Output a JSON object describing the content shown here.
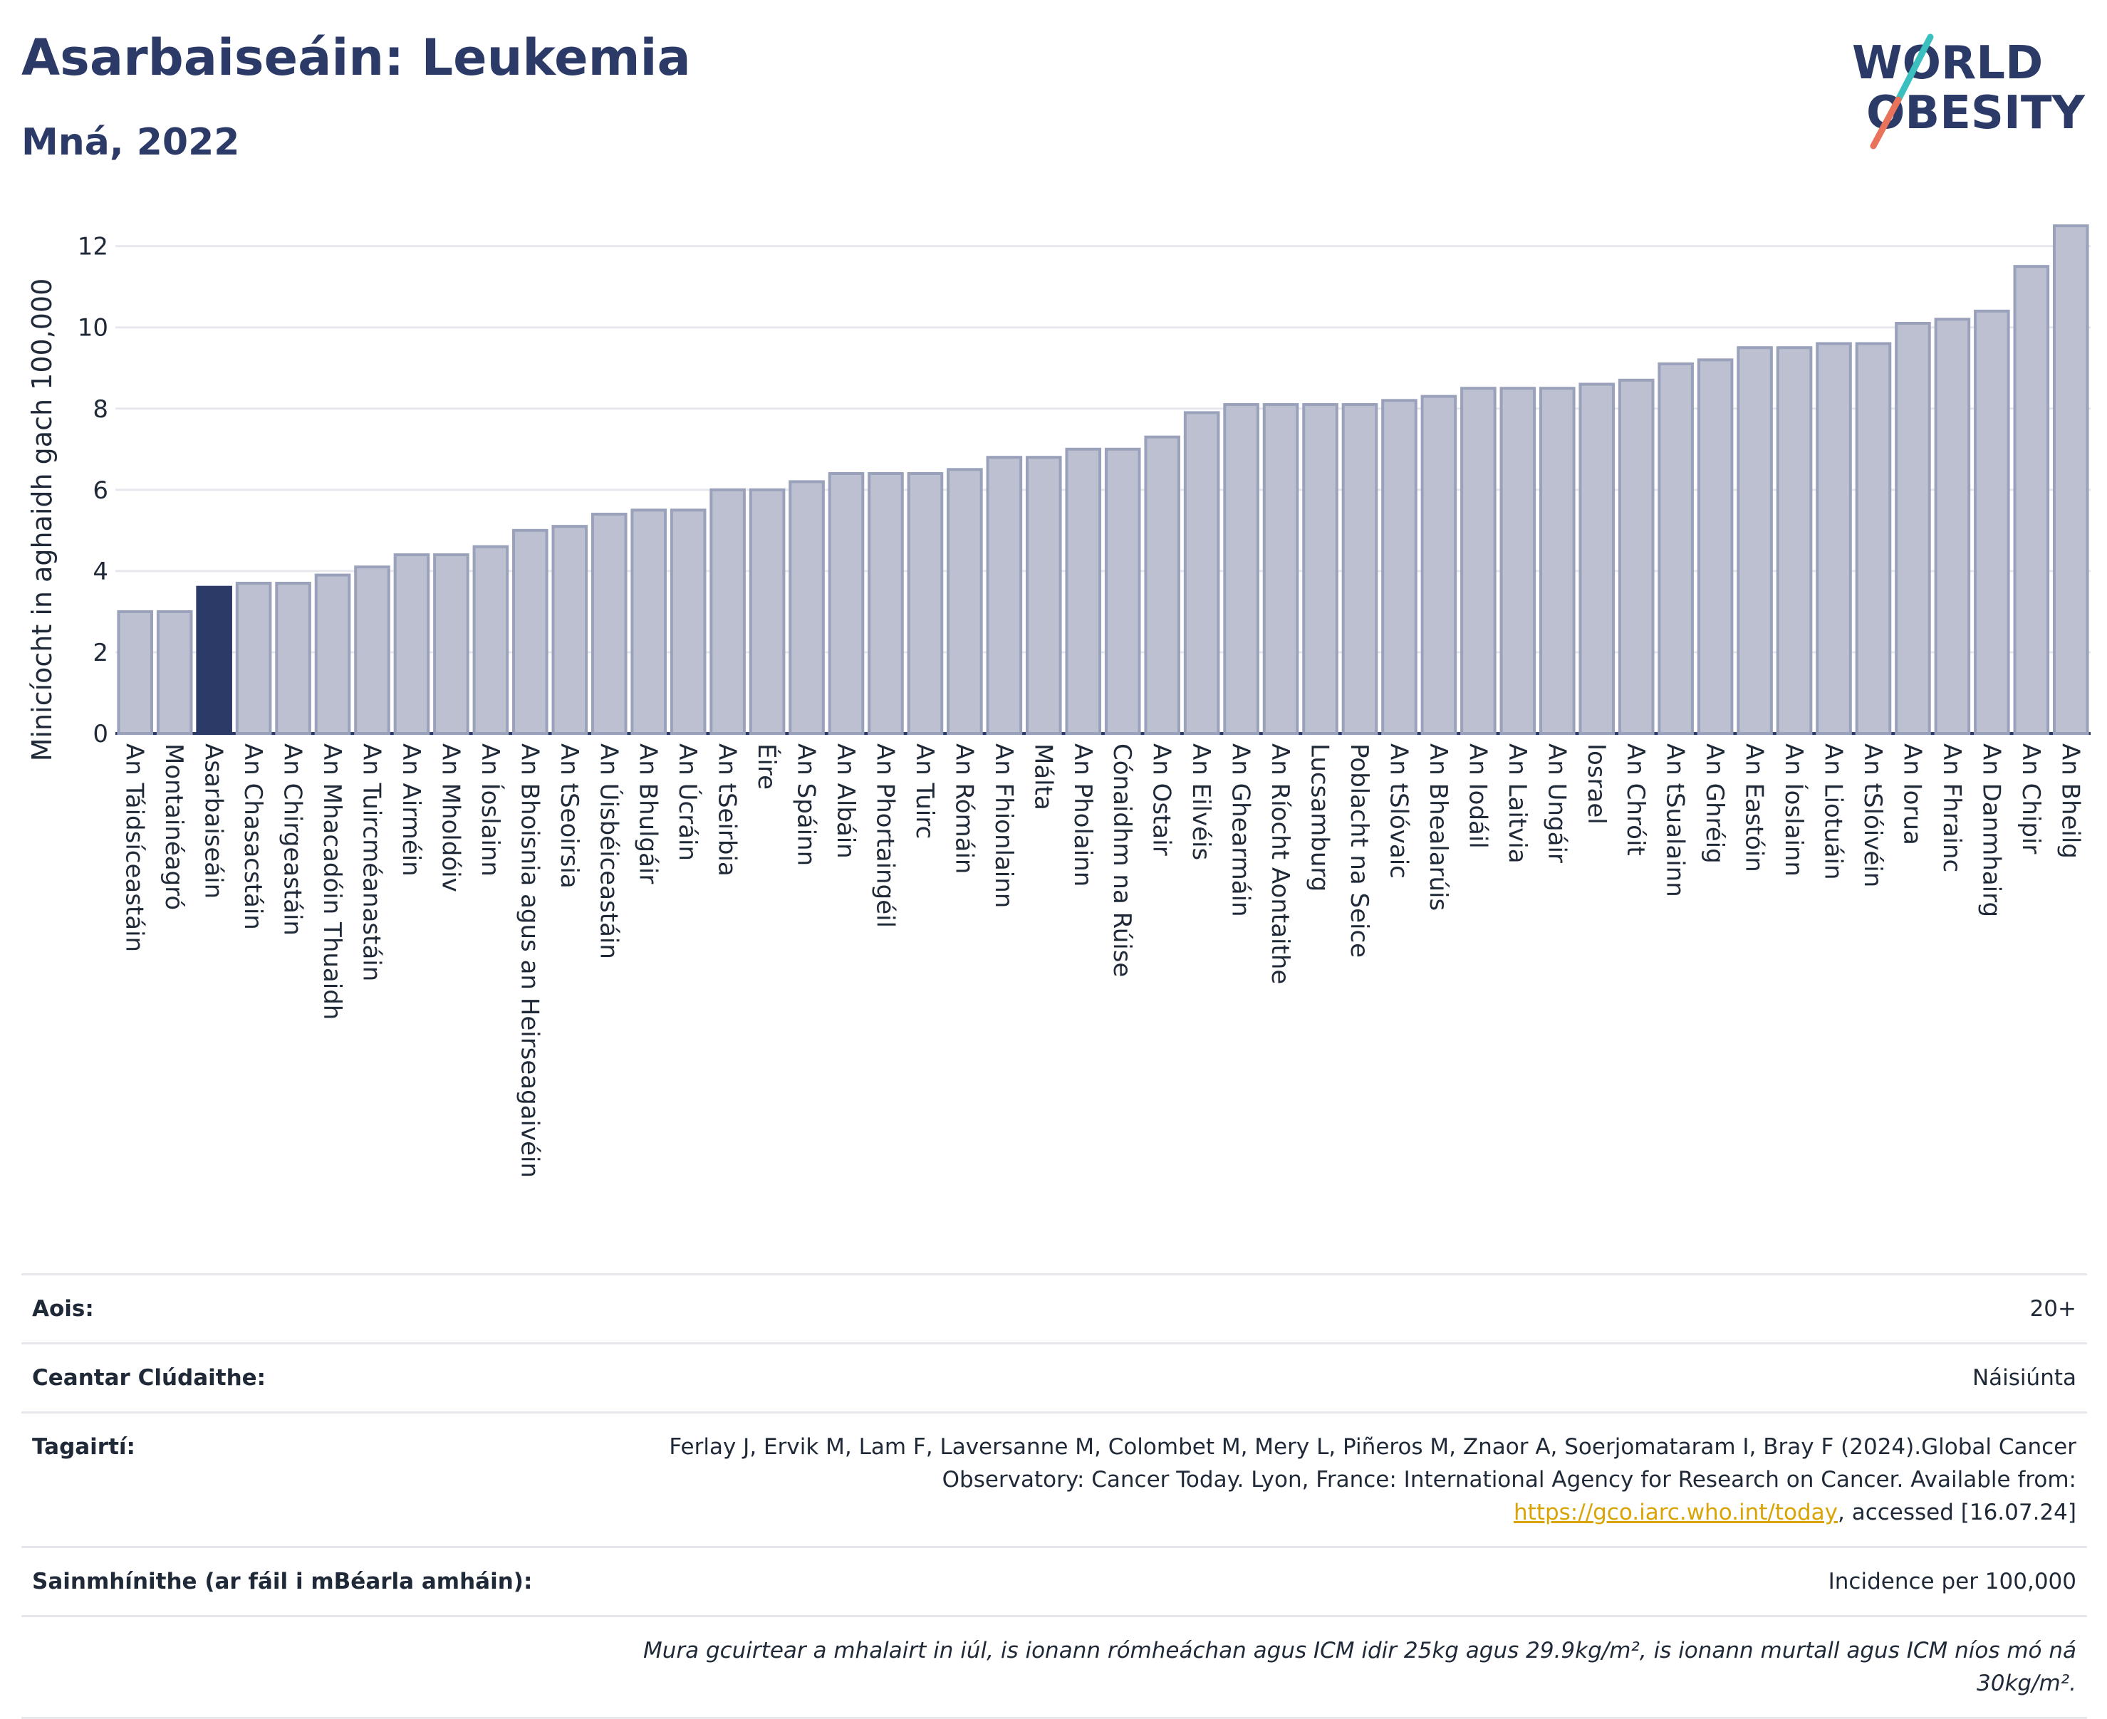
{
  "title": "Asarbaiseáin: Leukemia",
  "subtitle": "Mná, 2022",
  "logo": {
    "line1": "WORLD",
    "line2": "OBESITY"
  },
  "colors": {
    "bar": "#bcc0d0",
    "bar_stroke": "#9aa1ba",
    "highlight": "#2b3a67",
    "title": "#2b3a67",
    "link": "#d9a406"
  },
  "chart_data": {
    "type": "bar",
    "title": "Asarbaiseáin: Leukemia",
    "ylabel": "Minicíocht in aghaidh gach 100,000",
    "ylim": [
      0,
      12.8
    ],
    "yticks": [
      0,
      2,
      4,
      6,
      8,
      10,
      12
    ],
    "grid": true,
    "highlight": "Asarbaiseáin",
    "categories": [
      "An Táidsíceastáin",
      "Montainéagró",
      "Asarbaiseáin",
      "An Chasacstáin",
      "An Chirgeastáin",
      "An Mhacadóin Thuaidh",
      "An Tuircméanastáin",
      "An Airméin",
      "An Mholdóiv",
      "An Íoslainn",
      "An Bhoisnia agus an Heirseagaivéin",
      "An tSeoirsia",
      "An Úisbéiceastáin",
      "An Bhulgáir",
      "An Úcráin",
      "An tSeirbia",
      "Éire",
      "An Spáinn",
      "An Albáin",
      "An Phortaingéil",
      "An Tuirc",
      "An Rómáin",
      "An Fhionlainn",
      "Málta",
      "An Pholainn",
      "Cónaidhm na Rúise",
      "An Ostair",
      "An Eilvéis",
      "An Ghearmáin",
      "An Ríocht Aontaithe",
      "Lucsamburg",
      "Poblacht na Seice",
      "An tSlóvaic",
      "An Bhealarúis",
      "An Iodáil",
      "An Laitvia",
      "An Ungáir",
      "Iosrael",
      "An Chróit",
      "An tSualainn",
      "An Ghréig",
      "An Eastóin",
      "An Íoslainn",
      "An Liotuáin",
      "An tSlóivéin",
      "An Iorua",
      "An Fhrainc",
      "An Danmhairg",
      "An Chipir",
      "An Bheilg"
    ],
    "values": [
      3.0,
      3.0,
      3.6,
      3.7,
      3.7,
      3.9,
      4.1,
      4.4,
      4.4,
      4.6,
      5.0,
      5.1,
      5.4,
      5.5,
      5.5,
      6.0,
      6.0,
      6.2,
      6.4,
      6.4,
      6.4,
      6.5,
      6.8,
      6.8,
      7.0,
      7.0,
      7.3,
      7.9,
      8.1,
      8.1,
      8.1,
      8.1,
      8.2,
      8.3,
      8.5,
      8.5,
      8.5,
      8.6,
      8.7,
      9.1,
      9.2,
      9.5,
      9.5,
      9.6,
      9.6,
      10.1,
      10.2,
      10.4,
      11.5,
      12.5
    ]
  },
  "info": {
    "age_label": "Aois:",
    "age_value": "20+",
    "area_label": "Ceantar Clúdaithe:",
    "area_value": "Náisiúnta",
    "refs_label": "Tagairtí:",
    "refs_text": "Ferlay J, Ervik M, Lam F, Laversanne M, Colombet M, Mery L, Piñeros M, Znaor A, Soerjomataram I, Bray F (2024).Global Cancer Observatory: Cancer Today. Lyon, France: International Agency for Research on Cancer. Available from:",
    "refs_link": "https://gco.iarc.who.int/today",
    "refs_tail": ", accessed [16.07.24]",
    "def_label": "Sainmhínithe (ar fáil i mBéarla amháin):",
    "def_value": "Incidence per 100,000",
    "note": "Mura gcuirtear a mhalairt in iúl, is ionann rómheáchan agus ICM idir 25kg agus 29.9kg/m², is ionann murtall agus ICM níos mó ná 30kg/m²."
  }
}
